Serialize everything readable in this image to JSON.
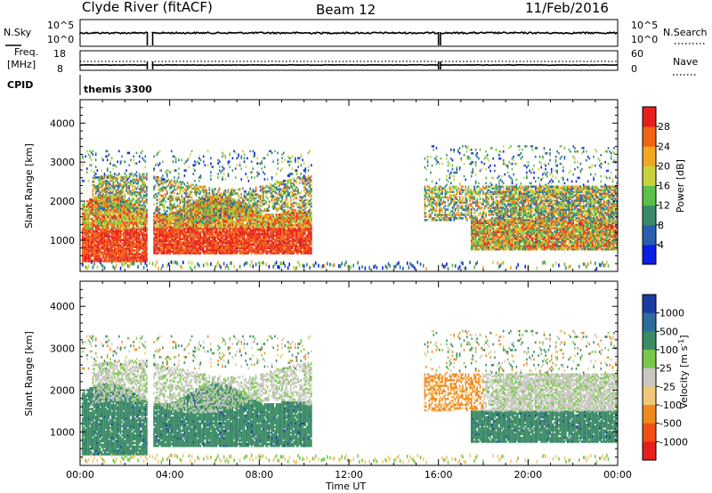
{
  "header": {
    "station": "Clyde River (fitACF)",
    "beam": "Beam 12",
    "date": "11/Feb/2016"
  },
  "sky_panel": {
    "left_label": "N.Sky",
    "right_label": "N.Search",
    "left_ticks": [
      "10^5",
      "10^0"
    ],
    "right_ticks": [
      "10^5",
      "10^0"
    ]
  },
  "freq_panel": {
    "left_label_1": "Freq.",
    "left_label_2": "[MHz]",
    "left_ticks": [
      "18",
      "8"
    ],
    "right_label": "Nave",
    "right_ticks": [
      "60",
      "0"
    ]
  },
  "cpid": {
    "label": "CPID",
    "value": "themis 3300"
  },
  "chart_data": [
    {
      "type": "heatmap",
      "quantity": "Power",
      "ylabel": "Slant Range [km]",
      "ylim": [
        200,
        4600
      ],
      "yticks": [
        "1000",
        "2000",
        "3000",
        "4000"
      ],
      "xlim_hours": [
        0,
        24
      ],
      "colorbar": {
        "label": "Power [dB]",
        "ticks": [
          "4",
          "8",
          "12",
          "16",
          "20",
          "24",
          "28"
        ],
        "colors": [
          "#0a1ee6",
          "#2a5fb0",
          "#3a8a6a",
          "#5bbf4a",
          "#c8d23c",
          "#f0a820",
          "#f06414",
          "#e61e1e"
        ]
      }
    },
    {
      "type": "heatmap",
      "quantity": "Velocity",
      "ylabel": "Slant Range [km]",
      "ylim": [
        200,
        4600
      ],
      "yticks": [
        "1000",
        "2000",
        "3000",
        "4000"
      ],
      "xlim_hours": [
        0,
        24
      ],
      "colorbar": {
        "label": "Velocity [m s",
        "label_sup": "-1",
        "label_end": "]",
        "ticks": [
          "1000",
          "500",
          "100",
          "25",
          "-25",
          "-100",
          "-500",
          "-1000"
        ],
        "colors": [
          "#1a3ca0",
          "#2e6a9a",
          "#3a8a64",
          "#7ac84a",
          "#c8c8c0",
          "#f0c878",
          "#f08a1e",
          "#f05014",
          "#e61e1e"
        ]
      }
    }
  ],
  "time_axis": {
    "ticks": [
      "00:00",
      "04:00",
      "08:00",
      "12:00",
      "16:00",
      "20:00",
      "00:00"
    ],
    "label": "Time UT"
  }
}
